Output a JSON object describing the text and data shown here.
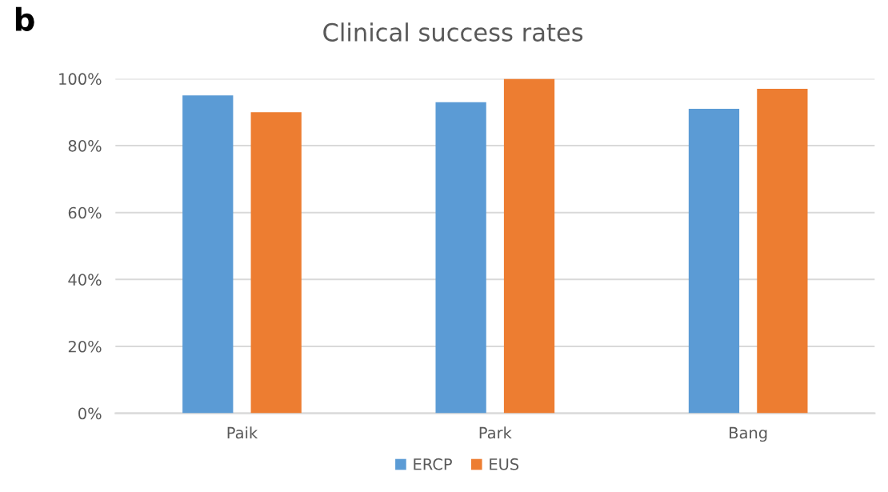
{
  "chart_data": {
    "type": "bar",
    "title": "Clinical success rates",
    "annotations": [
      "b"
    ],
    "categories": [
      "Paik",
      "Park",
      "Bang"
    ],
    "series": [
      {
        "name": "ERCP",
        "color": "#5b9bd5",
        "values": [
          95,
          93,
          91
        ]
      },
      {
        "name": "EUS",
        "color": "#ed7d31",
        "values": [
          90,
          100,
          97
        ]
      }
    ],
    "ylim": [
      0,
      100
    ],
    "yticks": [
      {
        "value": 0,
        "label": "0%"
      },
      {
        "value": 20,
        "label": "20%"
      },
      {
        "value": 40,
        "label": "40%"
      },
      {
        "value": 60,
        "label": "60%"
      },
      {
        "value": 80,
        "label": "80%"
      },
      {
        "value": 100,
        "label": "100%"
      }
    ],
    "grid": "y",
    "legend": "bottom"
  }
}
